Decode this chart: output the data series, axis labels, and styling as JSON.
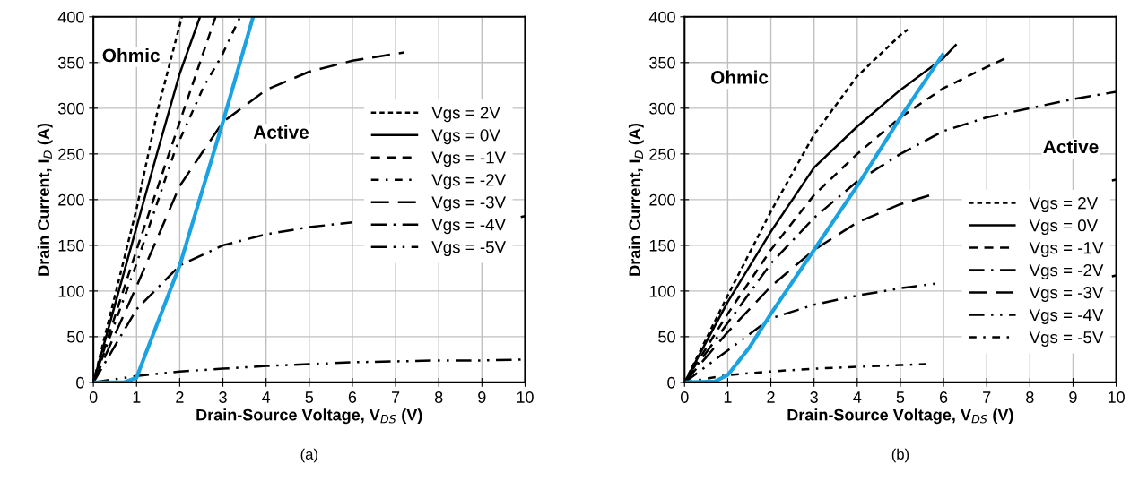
{
  "chart_data": [
    {
      "type": "line",
      "xlabel": "Drain-Source Voltage, V$_{DS}$ (V)",
      "ylabel": "Drain Current, I$_{D}$ (A)",
      "xlim": [
        0,
        10
      ],
      "ylim": [
        0,
        400
      ],
      "xticks": [
        0,
        1,
        2,
        3,
        4,
        5,
        6,
        7,
        8,
        9,
        10
      ],
      "yticks": [
        0,
        50,
        100,
        150,
        200,
        250,
        300,
        350,
        400
      ],
      "grid": true,
      "legend": "center right",
      "annotations": [
        "Ohmic",
        "Active",
        "(a)"
      ],
      "series": [
        {
          "name": "Vgs = 2V",
          "color": "#000000",
          "line_style": "dotted",
          "x": [
            0,
            0.5,
            1,
            1.5,
            2.05
          ],
          "values": [
            0,
            95,
            190,
            300,
            400
          ]
        },
        {
          "name": "Vgs = 0V",
          "color": "#000000",
          "line_style": "solid",
          "x": [
            0,
            0.5,
            1,
            1.5,
            2,
            2.47
          ],
          "values": [
            0,
            85,
            170,
            255,
            338,
            400
          ]
        },
        {
          "name": "Vgs = -1V",
          "color": "#000000",
          "line_style": "dashed",
          "x": [
            0,
            1,
            2,
            2.83
          ],
          "values": [
            0,
            145,
            285,
            400
          ]
        },
        {
          "name": "Vgs = -2V",
          "color": "#000000",
          "line_style": "shortdashdot",
          "x": [
            0,
            1,
            1.9,
            2.56,
            2.97,
            3.4
          ],
          "values": [
            0,
            130,
            255,
            324,
            357,
            400
          ]
        },
        {
          "name": "Vgs = -3V",
          "color": "#000000",
          "line_style": "longdash",
          "x": [
            0,
            1,
            2,
            3,
            4,
            5,
            6,
            7.2
          ],
          "values": [
            0,
            105,
            215,
            285,
            320,
            340,
            352,
            361
          ]
        },
        {
          "name": "Vgs = -4V",
          "color": "#000000",
          "line_style": "dashdot",
          "x": [
            0,
            1,
            2,
            3,
            4,
            5,
            6,
            8,
            9.9,
            10
          ],
          "values": [
            0,
            80,
            128,
            150,
            162,
            170,
            175,
            null,
            181,
            182
          ]
        },
        {
          "name": "Vgs = -5V",
          "color": "#000000",
          "line_style": "dashdotdot",
          "x": [
            0,
            1,
            2,
            3,
            4,
            5,
            6,
            7,
            8,
            9,
            10
          ],
          "values": [
            0,
            7,
            12,
            15,
            18,
            20,
            22,
            23,
            24,
            24,
            25
          ]
        },
        {
          "color": "#1aa3e0",
          "line_style": "solid",
          "x": [
            0,
            0.7,
            1,
            1.2,
            2,
            3,
            3.7
          ],
          "values": [
            0,
            0,
            5,
            30,
            128,
            285,
            400
          ]
        }
      ]
    },
    {
      "type": "line",
      "xlabel": "Drain-Source Voltage, V$_{DS}$ (V)",
      "ylabel": "Drain Current, I$_{D}$ (A)",
      "xlim": [
        0,
        10
      ],
      "ylim": [
        0,
        400
      ],
      "xticks": [
        0,
        1,
        2,
        3,
        4,
        5,
        6,
        7,
        8,
        9,
        10
      ],
      "yticks": [
        0,
        50,
        100,
        150,
        200,
        250,
        300,
        350,
        400
      ],
      "grid": true,
      "legend": "bottom right",
      "annotations": [
        "Ohmic",
        "Active",
        "(b)"
      ],
      "series": [
        {
          "name": "Vgs = 2V",
          "color": "#000000",
          "line_style": "dotted",
          "x": [
            0,
            1,
            2,
            3,
            4,
            5,
            5.17
          ],
          "values": [
            0,
            95,
            187,
            271,
            335,
            380,
            386
          ]
        },
        {
          "name": "Vgs = 0V",
          "color": "#000000",
          "line_style": "solid",
          "x": [
            0,
            1,
            2,
            3,
            4,
            5,
            6,
            6.3
          ],
          "values": [
            0,
            88,
            165,
            235,
            280,
            320,
            355,
            370
          ]
        },
        {
          "name": "Vgs = -1V",
          "color": "#000000",
          "line_style": "dashed",
          "x": [
            0,
            1,
            2,
            3,
            4,
            5,
            6,
            7,
            7.45
          ],
          "values": [
            0,
            75,
            145,
            205,
            250,
            290,
            322,
            345,
            355
          ]
        },
        {
          "name": "Vgs = -2V",
          "color": "#000000",
          "line_style": "dashdot",
          "x": [
            0,
            1,
            2,
            3,
            4,
            5,
            6,
            7,
            8,
            9,
            10
          ],
          "values": [
            0,
            65,
            130,
            180,
            220,
            250,
            275,
            290,
            300,
            310,
            318
          ]
        },
        {
          "name": "Vgs = -3V",
          "color": "#000000",
          "line_style": "longdash",
          "x": [
            0,
            1,
            2,
            3,
            4,
            5,
            5.7,
            8,
            9.9,
            10
          ],
          "values": [
            0,
            55,
            105,
            145,
            175,
            195,
            205,
            null,
            221,
            222
          ]
        },
        {
          "name": "Vgs = -4V",
          "color": "#000000",
          "line_style": "dashdotdot",
          "x": [
            0,
            1,
            2,
            3,
            4,
            5,
            5.8,
            8,
            9.9,
            10
          ],
          "values": [
            0,
            35,
            70,
            85,
            95,
            103,
            108,
            null,
            116,
            117
          ]
        },
        {
          "name": "Vgs = -5V",
          "color": "#000000",
          "line_style": "shortdashdot",
          "x": [
            0,
            1,
            2,
            3,
            4,
            5,
            5.6
          ],
          "values": [
            0,
            8,
            12,
            15,
            17,
            19,
            20
          ]
        },
        {
          "color": "#1aa3e0",
          "line_style": "solid",
          "x": [
            0,
            0.7,
            1,
            1.5,
            2,
            3,
            4,
            5,
            6
          ],
          "values": [
            0,
            1,
            8,
            38,
            75,
            145,
            215,
            290,
            360
          ]
        }
      ]
    }
  ]
}
